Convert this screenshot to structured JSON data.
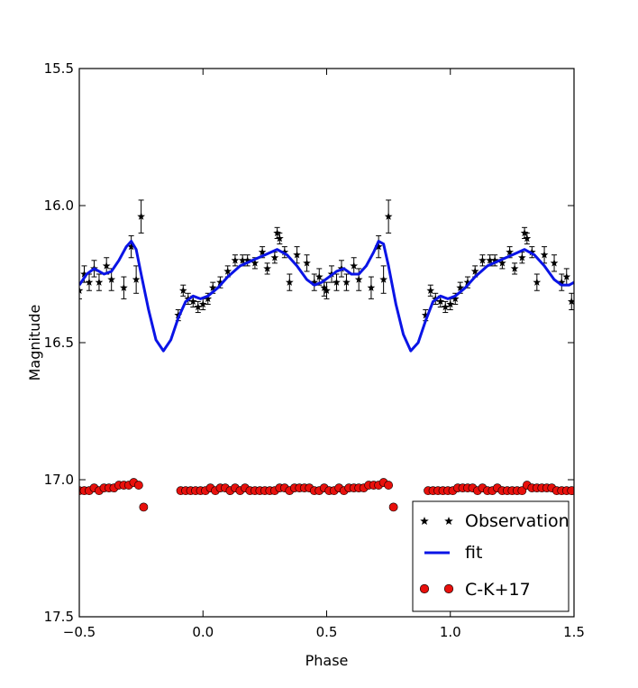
{
  "chart_data": {
    "type": "scatter",
    "title": "",
    "xlabel": "Phase",
    "ylabel": "Magnitude",
    "xlim": [
      -0.5,
      1.5
    ],
    "ylim": [
      15.5,
      17.5
    ],
    "y_inverted": true,
    "xticks": [
      -0.5,
      0.0,
      0.5,
      1.0,
      1.5
    ],
    "xtick_labels": [
      "−0.5",
      "0.0",
      "0.5",
      "1.0",
      "1.5"
    ],
    "yticks": [
      15.5,
      16.0,
      16.5,
      17.0,
      17.5
    ],
    "ytick_labels": [
      "15.5",
      "16.0",
      "16.5",
      "17.0",
      "17.5"
    ],
    "grid": false,
    "legend_position": "bottom-right",
    "colors": {
      "observation": "#000000",
      "fit": "#0a14e6",
      "model": "#e8100c"
    },
    "series": [
      {
        "name": "Observation",
        "kind": "star-errorbar",
        "points": [
          [
            -0.5,
            16.31,
            0.03
          ],
          [
            -0.48,
            16.25,
            0.03
          ],
          [
            -0.46,
            16.28,
            0.03
          ],
          [
            -0.44,
            16.23,
            0.03
          ],
          [
            -0.42,
            16.28,
            0.03
          ],
          [
            -0.39,
            16.22,
            0.03
          ],
          [
            -0.37,
            16.27,
            0.04
          ],
          [
            -0.32,
            16.3,
            0.04
          ],
          [
            -0.29,
            16.15,
            0.04
          ],
          [
            -0.27,
            16.27,
            0.05
          ],
          [
            -0.25,
            16.04,
            0.06
          ],
          [
            -0.1,
            16.4,
            0.02
          ],
          [
            -0.08,
            16.31,
            0.02
          ],
          [
            -0.06,
            16.34,
            0.02
          ],
          [
            -0.04,
            16.35,
            0.02
          ],
          [
            -0.02,
            16.37,
            0.02
          ],
          [
            0.0,
            16.36,
            0.02
          ],
          [
            0.02,
            16.34,
            0.02
          ],
          [
            0.04,
            16.3,
            0.02
          ],
          [
            0.07,
            16.28,
            0.02
          ],
          [
            0.1,
            16.24,
            0.02
          ],
          [
            0.13,
            16.2,
            0.02
          ],
          [
            0.16,
            16.2,
            0.02
          ],
          [
            0.18,
            16.2,
            0.02
          ],
          [
            0.21,
            16.21,
            0.02
          ],
          [
            0.24,
            16.17,
            0.02
          ],
          [
            0.26,
            16.23,
            0.02
          ],
          [
            0.29,
            16.19,
            0.02
          ],
          [
            0.3,
            16.1,
            0.02
          ],
          [
            0.31,
            16.12,
            0.02
          ],
          [
            0.33,
            16.17,
            0.02
          ],
          [
            0.35,
            16.28,
            0.03
          ],
          [
            0.38,
            16.18,
            0.03
          ],
          [
            0.42,
            16.21,
            0.03
          ],
          [
            0.45,
            16.28,
            0.03
          ],
          [
            0.47,
            16.26,
            0.03
          ],
          [
            0.49,
            16.3,
            0.03
          ],
          [
            0.5,
            16.31,
            0.03
          ],
          [
            0.52,
            16.25,
            0.03
          ],
          [
            0.54,
            16.28,
            0.03
          ],
          [
            0.56,
            16.23,
            0.03
          ],
          [
            0.58,
            16.28,
            0.03
          ],
          [
            0.61,
            16.22,
            0.03
          ],
          [
            0.63,
            16.27,
            0.04
          ],
          [
            0.68,
            16.3,
            0.04
          ],
          [
            0.71,
            16.15,
            0.04
          ],
          [
            0.73,
            16.27,
            0.05
          ],
          [
            0.75,
            16.04,
            0.06
          ],
          [
            0.9,
            16.4,
            0.02
          ],
          [
            0.92,
            16.31,
            0.02
          ],
          [
            0.94,
            16.34,
            0.02
          ],
          [
            0.96,
            16.35,
            0.02
          ],
          [
            0.98,
            16.37,
            0.02
          ],
          [
            1.0,
            16.36,
            0.02
          ],
          [
            1.02,
            16.34,
            0.02
          ],
          [
            1.04,
            16.3,
            0.02
          ],
          [
            1.07,
            16.28,
            0.02
          ],
          [
            1.1,
            16.24,
            0.02
          ],
          [
            1.13,
            16.2,
            0.02
          ],
          [
            1.16,
            16.2,
            0.02
          ],
          [
            1.18,
            16.2,
            0.02
          ],
          [
            1.21,
            16.21,
            0.02
          ],
          [
            1.24,
            16.17,
            0.02
          ],
          [
            1.26,
            16.23,
            0.02
          ],
          [
            1.29,
            16.19,
            0.02
          ],
          [
            1.3,
            16.1,
            0.02
          ],
          [
            1.31,
            16.12,
            0.02
          ],
          [
            1.33,
            16.17,
            0.02
          ],
          [
            1.35,
            16.28,
            0.03
          ],
          [
            1.38,
            16.18,
            0.03
          ],
          [
            1.42,
            16.21,
            0.03
          ],
          [
            1.45,
            16.28,
            0.03
          ],
          [
            1.47,
            16.26,
            0.03
          ],
          [
            1.49,
            16.35,
            0.03
          ]
        ]
      },
      {
        "name": "fit",
        "kind": "line",
        "points": [
          [
            -0.5,
            16.29
          ],
          [
            -0.47,
            16.25
          ],
          [
            -0.44,
            16.23
          ],
          [
            -0.42,
            16.24
          ],
          [
            -0.4,
            16.25
          ],
          [
            -0.37,
            16.24
          ],
          [
            -0.34,
            16.2
          ],
          [
            -0.31,
            16.15
          ],
          [
            -0.29,
            16.13
          ],
          [
            -0.27,
            16.16
          ],
          [
            -0.25,
            16.25
          ],
          [
            -0.22,
            16.38
          ],
          [
            -0.19,
            16.49
          ],
          [
            -0.16,
            16.53
          ],
          [
            -0.13,
            16.49
          ],
          [
            -0.1,
            16.41
          ],
          [
            -0.07,
            16.35
          ],
          [
            -0.04,
            16.33
          ],
          [
            -0.01,
            16.34
          ],
          [
            0.02,
            16.33
          ],
          [
            0.06,
            16.3
          ],
          [
            0.1,
            16.26
          ],
          [
            0.15,
            16.22
          ],
          [
            0.2,
            16.2
          ],
          [
            0.25,
            16.18
          ],
          [
            0.3,
            16.16
          ],
          [
            0.34,
            16.18
          ],
          [
            0.38,
            16.22
          ],
          [
            0.42,
            16.27
          ],
          [
            0.45,
            16.29
          ],
          [
            0.48,
            16.28
          ],
          [
            0.51,
            16.26
          ],
          [
            0.54,
            16.24
          ],
          [
            0.57,
            16.23
          ],
          [
            0.6,
            16.25
          ],
          [
            0.63,
            16.25
          ],
          [
            0.66,
            16.22
          ],
          [
            0.69,
            16.17
          ],
          [
            0.71,
            16.13
          ],
          [
            0.73,
            16.14
          ],
          [
            0.75,
            16.22
          ],
          [
            0.78,
            16.36
          ],
          [
            0.81,
            16.47
          ],
          [
            0.84,
            16.53
          ],
          [
            0.87,
            16.5
          ],
          [
            0.9,
            16.42
          ],
          [
            0.93,
            16.35
          ],
          [
            0.96,
            16.33
          ],
          [
            0.99,
            16.34
          ],
          [
            1.02,
            16.33
          ],
          [
            1.06,
            16.3
          ],
          [
            1.1,
            16.26
          ],
          [
            1.15,
            16.22
          ],
          [
            1.2,
            16.2
          ],
          [
            1.25,
            16.18
          ],
          [
            1.3,
            16.16
          ],
          [
            1.34,
            16.18
          ],
          [
            1.38,
            16.22
          ],
          [
            1.42,
            16.27
          ],
          [
            1.45,
            16.29
          ],
          [
            1.48,
            16.29
          ],
          [
            1.5,
            16.28
          ]
        ]
      },
      {
        "name": "C-K+17",
        "kind": "circle",
        "points": [
          [
            -0.5,
            17.04
          ],
          [
            -0.48,
            17.04
          ],
          [
            -0.46,
            17.04
          ],
          [
            -0.44,
            17.03
          ],
          [
            -0.42,
            17.04
          ],
          [
            -0.4,
            17.03
          ],
          [
            -0.38,
            17.03
          ],
          [
            -0.36,
            17.03
          ],
          [
            -0.34,
            17.02
          ],
          [
            -0.32,
            17.02
          ],
          [
            -0.3,
            17.02
          ],
          [
            -0.28,
            17.01
          ],
          [
            -0.26,
            17.02
          ],
          [
            -0.24,
            17.1
          ],
          [
            -0.09,
            17.04
          ],
          [
            -0.07,
            17.04
          ],
          [
            -0.05,
            17.04
          ],
          [
            -0.03,
            17.04
          ],
          [
            -0.01,
            17.04
          ],
          [
            0.01,
            17.04
          ],
          [
            0.03,
            17.03
          ],
          [
            0.05,
            17.04
          ],
          [
            0.07,
            17.03
          ],
          [
            0.09,
            17.03
          ],
          [
            0.11,
            17.04
          ],
          [
            0.13,
            17.03
          ],
          [
            0.15,
            17.04
          ],
          [
            0.17,
            17.03
          ],
          [
            0.19,
            17.04
          ],
          [
            0.21,
            17.04
          ],
          [
            0.23,
            17.04
          ],
          [
            0.25,
            17.04
          ],
          [
            0.27,
            17.04
          ],
          [
            0.29,
            17.04
          ],
          [
            0.31,
            17.03
          ],
          [
            0.33,
            17.03
          ],
          [
            0.35,
            17.04
          ],
          [
            0.37,
            17.03
          ],
          [
            0.39,
            17.03
          ],
          [
            0.41,
            17.03
          ],
          [
            0.43,
            17.03
          ],
          [
            0.45,
            17.04
          ],
          [
            0.47,
            17.04
          ],
          [
            0.49,
            17.03
          ],
          [
            0.51,
            17.04
          ],
          [
            0.53,
            17.04
          ],
          [
            0.55,
            17.03
          ],
          [
            0.57,
            17.04
          ],
          [
            0.59,
            17.03
          ],
          [
            0.61,
            17.03
          ],
          [
            0.63,
            17.03
          ],
          [
            0.65,
            17.03
          ],
          [
            0.67,
            17.02
          ],
          [
            0.69,
            17.02
          ],
          [
            0.71,
            17.02
          ],
          [
            0.73,
            17.01
          ],
          [
            0.75,
            17.02
          ],
          [
            0.77,
            17.1
          ],
          [
            0.91,
            17.04
          ],
          [
            0.93,
            17.04
          ],
          [
            0.95,
            17.04
          ],
          [
            0.97,
            17.04
          ],
          [
            0.99,
            17.04
          ],
          [
            1.01,
            17.04
          ],
          [
            1.03,
            17.03
          ],
          [
            1.05,
            17.03
          ],
          [
            1.07,
            17.03
          ],
          [
            1.09,
            17.03
          ],
          [
            1.11,
            17.04
          ],
          [
            1.13,
            17.03
          ],
          [
            1.15,
            17.04
          ],
          [
            1.17,
            17.04
          ],
          [
            1.19,
            17.03
          ],
          [
            1.21,
            17.04
          ],
          [
            1.23,
            17.04
          ],
          [
            1.25,
            17.04
          ],
          [
            1.27,
            17.04
          ],
          [
            1.29,
            17.04
          ],
          [
            1.31,
            17.02
          ],
          [
            1.33,
            17.03
          ],
          [
            1.35,
            17.03
          ],
          [
            1.37,
            17.03
          ],
          [
            1.39,
            17.03
          ],
          [
            1.41,
            17.03
          ],
          [
            1.43,
            17.04
          ],
          [
            1.45,
            17.04
          ],
          [
            1.47,
            17.04
          ],
          [
            1.49,
            17.04
          ]
        ]
      }
    ],
    "legend": [
      "Observation",
      "fit",
      "C-K+17"
    ]
  }
}
